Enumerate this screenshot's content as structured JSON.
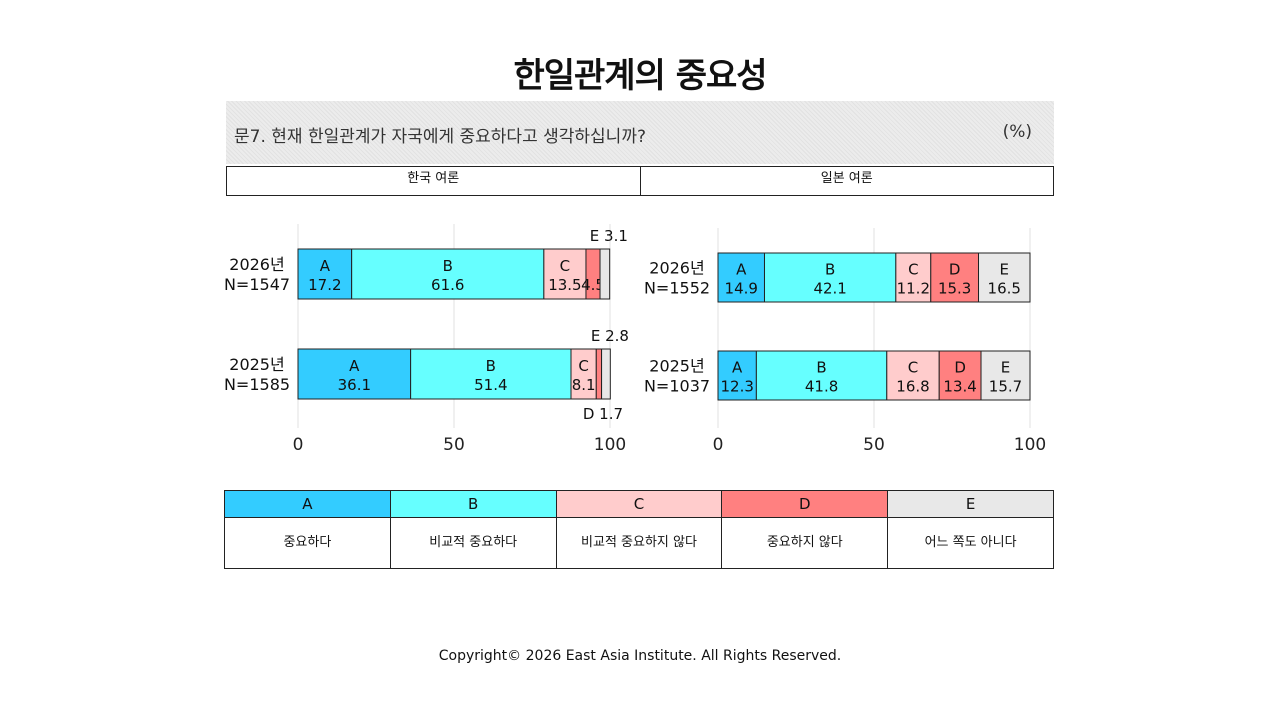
{
  "title": "한일관계의 중요성",
  "question": {
    "text": "문7. 현재 한일관계가 자국에게 중요하다고 생각하십니까?",
    "unit": "(%)"
  },
  "headers": {
    "left": "한국 여론",
    "right": "일본 여론"
  },
  "colors": {
    "A": "#33ccff",
    "B": "#66ffff",
    "C": "#ffcccc",
    "D": "#ff8080",
    "E": "#e8e8e8"
  },
  "chart_data": [
    {
      "type": "bar",
      "orientation": "horizontal",
      "stacked": true,
      "panel": "한국 여론",
      "categories": [
        "2026년 N=1547",
        "2025년 N=1585"
      ],
      "series": [
        {
          "name": "A",
          "values": [
            17.2,
            36.1
          ]
        },
        {
          "name": "B",
          "values": [
            61.6,
            51.4
          ]
        },
        {
          "name": "C",
          "values": [
            13.5,
            8.1
          ]
        },
        {
          "name": "D",
          "values": [
            4.5,
            1.7
          ]
        },
        {
          "name": "E",
          "values": [
            3.1,
            2.8
          ]
        }
      ],
      "xlim": [
        0,
        100
      ],
      "xticks": [
        0,
        50,
        100
      ],
      "grid": true
    },
    {
      "type": "bar",
      "orientation": "horizontal",
      "stacked": true,
      "panel": "일본 여론",
      "categories": [
        "2026년 N=1552",
        "2025년 N=1037"
      ],
      "series": [
        {
          "name": "A",
          "values": [
            14.9,
            12.3
          ]
        },
        {
          "name": "B",
          "values": [
            42.1,
            41.8
          ]
        },
        {
          "name": "C",
          "values": [
            11.2,
            16.8
          ]
        },
        {
          "name": "D",
          "values": [
            15.3,
            13.4
          ]
        },
        {
          "name": "E",
          "values": [
            16.5,
            15.7
          ]
        }
      ],
      "xlim": [
        0,
        100
      ],
      "xticks": [
        0,
        50,
        100
      ],
      "grid": true
    }
  ],
  "legend": [
    {
      "key": "A",
      "label": "중요하다"
    },
    {
      "key": "B",
      "label": "비교적 중요하다"
    },
    {
      "key": "C",
      "label": "비교적 중요하지 않다"
    },
    {
      "key": "D",
      "label": "중요하지 않다"
    },
    {
      "key": "E",
      "label": "어느 쪽도 아니다"
    }
  ],
  "copyright": "Copyright© 2026 East Asia Institute. All Rights Reserved."
}
